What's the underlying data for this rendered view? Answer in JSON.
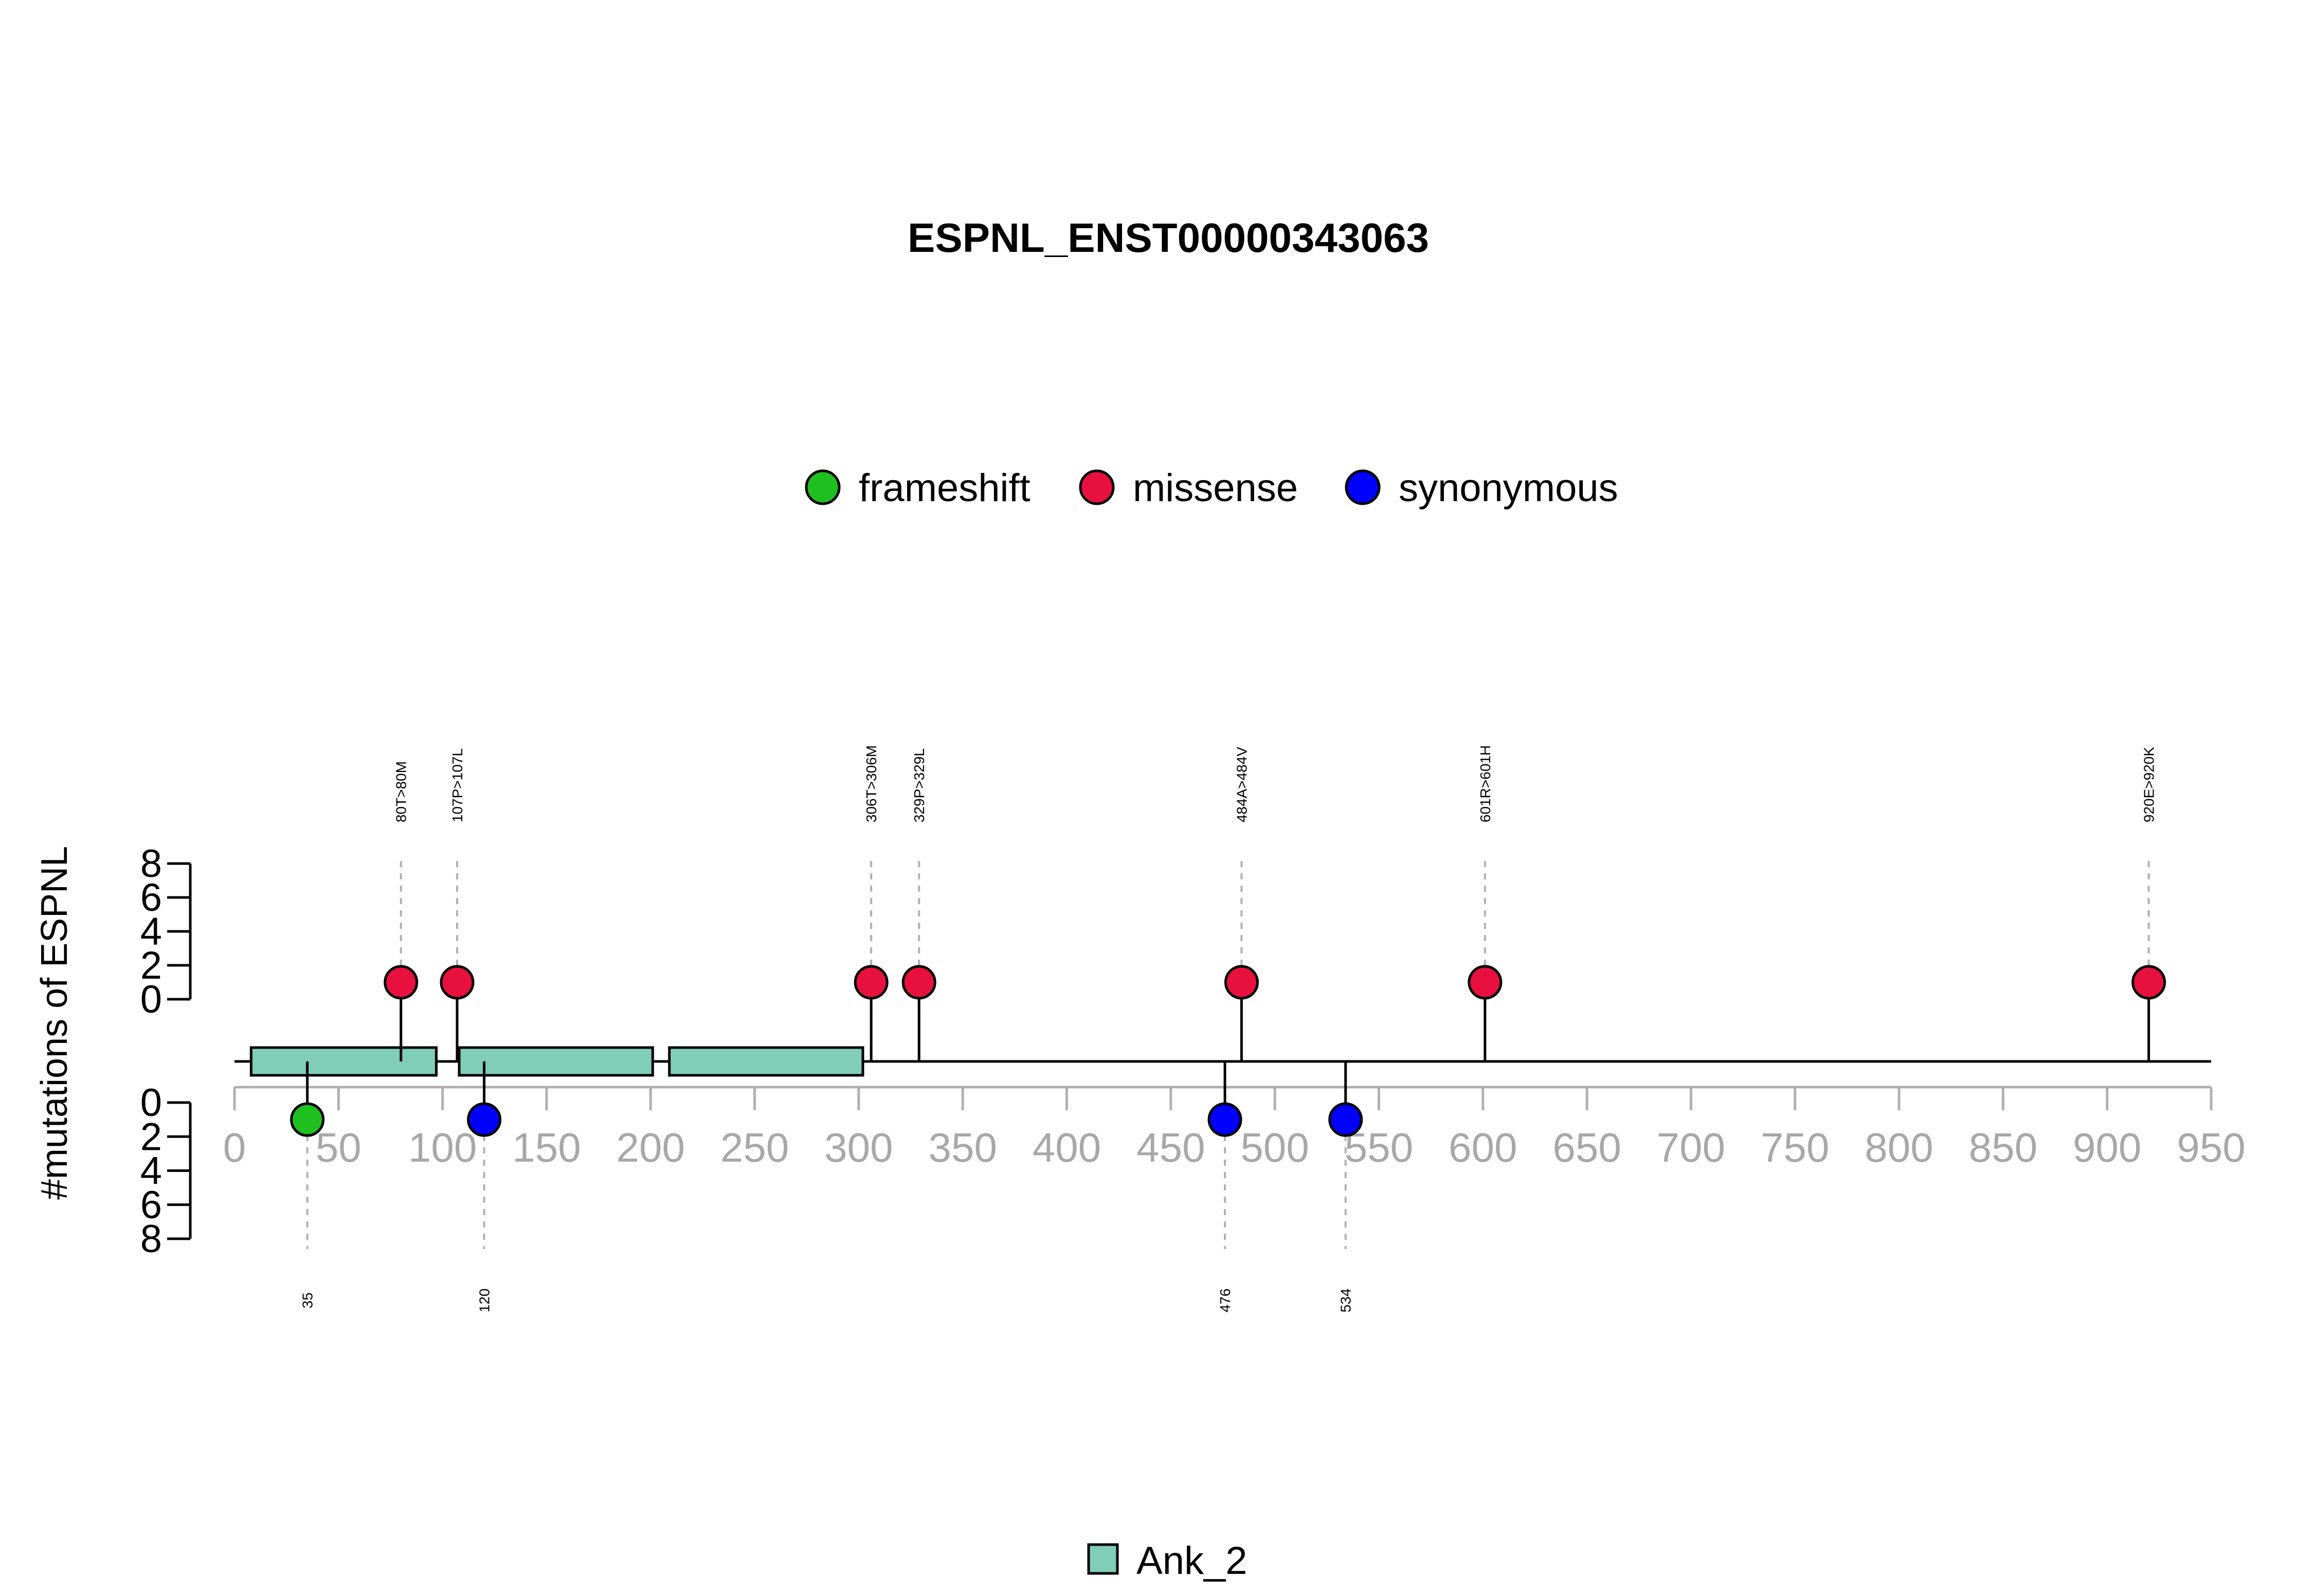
{
  "chart_data": {
    "type": "lollipop",
    "title": "ESPNL_ENST00000343063",
    "ylabel": "#mutations of ESPNL",
    "xlim": [
      0,
      950
    ],
    "x_ticks": [
      0,
      50,
      100,
      150,
      200,
      250,
      300,
      350,
      400,
      450,
      500,
      550,
      600,
      650,
      700,
      750,
      800,
      850,
      900,
      950
    ],
    "y_ticks_top": [
      0,
      2,
      4,
      6,
      8
    ],
    "y_ticks_bottom": [
      0,
      2,
      4,
      6,
      8
    ],
    "ylim": [
      0,
      8
    ],
    "legend_mutation": [
      {
        "label": "frameshift",
        "color": "#1fbf1f"
      },
      {
        "label": "missense",
        "color": "#e8103f"
      },
      {
        "label": "synonymous",
        "color": "#0000ff"
      }
    ],
    "legend_domain": [
      {
        "label": "Ank_2",
        "color": "#80cdb8"
      }
    ],
    "domains": [
      {
        "name": "Ank_2",
        "start": 8,
        "end": 97
      },
      {
        "name": "Ank_2",
        "start": 108,
        "end": 201
      },
      {
        "name": "Ank_2",
        "start": 209,
        "end": 302
      }
    ],
    "mutations_top": [
      {
        "pos": 80,
        "label": "80T>80M",
        "type": "missense",
        "count": 1
      },
      {
        "pos": 107,
        "label": "107P>107L",
        "type": "missense",
        "count": 1
      },
      {
        "pos": 306,
        "label": "306T>306M",
        "type": "missense",
        "count": 1
      },
      {
        "pos": 329,
        "label": "329P>329L",
        "type": "missense",
        "count": 1
      },
      {
        "pos": 484,
        "label": "484A>484V",
        "type": "missense",
        "count": 1
      },
      {
        "pos": 601,
        "label": "601R>601H",
        "type": "missense",
        "count": 1
      },
      {
        "pos": 920,
        "label": "920E>920K",
        "type": "missense",
        "count": 1
      }
    ],
    "mutations_bottom": [
      {
        "pos": 35,
        "label": "35",
        "type": "frameshift",
        "count": 1
      },
      {
        "pos": 120,
        "label": "120",
        "type": "synonymous",
        "count": 1
      },
      {
        "pos": 476,
        "label": "476",
        "type": "synonymous",
        "count": 1
      },
      {
        "pos": 534,
        "label": "534",
        "type": "synonymous",
        "count": 1
      }
    ]
  }
}
